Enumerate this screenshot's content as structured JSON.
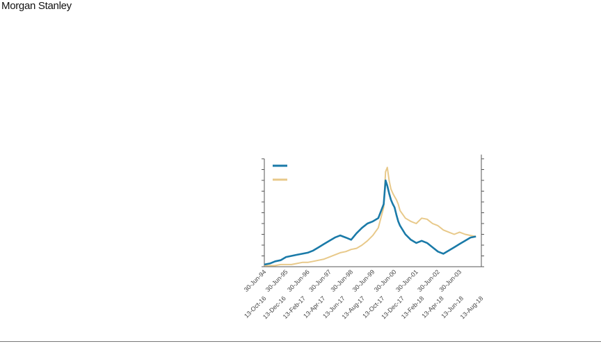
{
  "header": {
    "logo_text": "Morgan Stanley"
  },
  "chart_data": {
    "type": "line",
    "title": "",
    "xlabel": "",
    "ylabel": "",
    "grid": false,
    "legend": "top-left",
    "x_ticks_top_row": [
      "30-Jun-94",
      "30-Jun-95",
      "30-Jun-96",
      "30-Jun-97",
      "30-Jun-98",
      "30-Jun-99",
      "30-Jun-00",
      "30-Jun-01",
      "30-Jun-02",
      "30-Jun-03"
    ],
    "x_ticks_bottom_row": [
      "13-Oct-16",
      "13-Dec-16",
      "13-Feb-17",
      "13-Apr-17",
      "13-Jun-17",
      "13-Aug-17",
      "13-Oct-17",
      "13-Dec-17",
      "13-Feb-18",
      "13-Apr-18",
      "13-Jun-18",
      "13-Aug-18"
    ],
    "x_range": [
      "30-Jun-94",
      "30-Jun-04"
    ],
    "series": [
      {
        "color": "#1a7aa8",
        "x": [
          "30-Jun-94",
          "30-Sep-94",
          "30-Dec-94",
          "31-Mar-95",
          "30-Jun-95",
          "30-Sep-95",
          "30-Dec-95",
          "31-Mar-96",
          "30-Jun-96",
          "30-Sep-96",
          "30-Dec-96",
          "31-Mar-97",
          "30-Jun-97",
          "30-Sep-97",
          "30-Dec-97",
          "31-Mar-98",
          "30-Jun-98",
          "30-Sep-98",
          "30-Dec-98",
          "31-Mar-99",
          "30-Jun-99",
          "30-Sep-99",
          "30-Dec-99",
          "31-Jan-00",
          "29-Feb-00",
          "31-Mar-00",
          "30-Apr-00",
          "31-May-00",
          "30-Jun-00",
          "31-Jul-00",
          "31-Aug-00",
          "30-Sep-00",
          "30-Dec-00",
          "31-Mar-01",
          "30-Jun-01",
          "30-Sep-01",
          "30-Dec-01",
          "31-Mar-02",
          "30-Jun-02",
          "30-Sep-02",
          "30-Dec-02",
          "31-Mar-03",
          "30-Jun-03",
          "30-Sep-03",
          "30-Dec-03",
          "31-Mar-04"
        ],
        "values": [
          2,
          3,
          5,
          6,
          9,
          10,
          11,
          12,
          13,
          15,
          18,
          21,
          24,
          27,
          29,
          27,
          25,
          31,
          36,
          40,
          42,
          45,
          58,
          80,
          75,
          68,
          62,
          58,
          55,
          48,
          42,
          38,
          30,
          25,
          22,
          24,
          22,
          18,
          14,
          12,
          15,
          18,
          21,
          24,
          27,
          28
        ]
      },
      {
        "color": "#e8c98a",
        "x": [
          "30-Jun-94",
          "30-Sep-94",
          "30-Dec-94",
          "31-Mar-95",
          "30-Jun-95",
          "30-Sep-95",
          "30-Dec-95",
          "31-Mar-96",
          "30-Jun-96",
          "30-Sep-96",
          "30-Dec-96",
          "31-Mar-97",
          "30-Jun-97",
          "30-Sep-97",
          "30-Dec-97",
          "31-Mar-98",
          "30-Jun-98",
          "30-Sep-98",
          "30-Dec-98",
          "31-Mar-99",
          "30-Jun-99",
          "30-Sep-99",
          "30-Dec-99",
          "31-Jan-00",
          "29-Feb-00",
          "31-Mar-00",
          "30-Apr-00",
          "31-May-00",
          "30-Jun-00",
          "31-Jul-00",
          "31-Aug-00",
          "30-Sep-00",
          "30-Dec-00",
          "31-Mar-01",
          "30-Jun-01",
          "30-Sep-01",
          "30-Dec-01",
          "31-Mar-02",
          "30-Jun-02",
          "30-Sep-02",
          "30-Dec-02",
          "31-Mar-03",
          "30-Jun-03",
          "30-Sep-03",
          "30-Dec-03",
          "31-Mar-04"
        ],
        "values": [
          1,
          1,
          1,
          2,
          2,
          2,
          3,
          4,
          4,
          5,
          6,
          7,
          9,
          11,
          13,
          14,
          16,
          17,
          20,
          24,
          29,
          36,
          55,
          88,
          92,
          80,
          72,
          68,
          65,
          62,
          58,
          52,
          45,
          42,
          40,
          45,
          44,
          40,
          38,
          34,
          32,
          30,
          32,
          30,
          29,
          28
        ]
      }
    ]
  }
}
